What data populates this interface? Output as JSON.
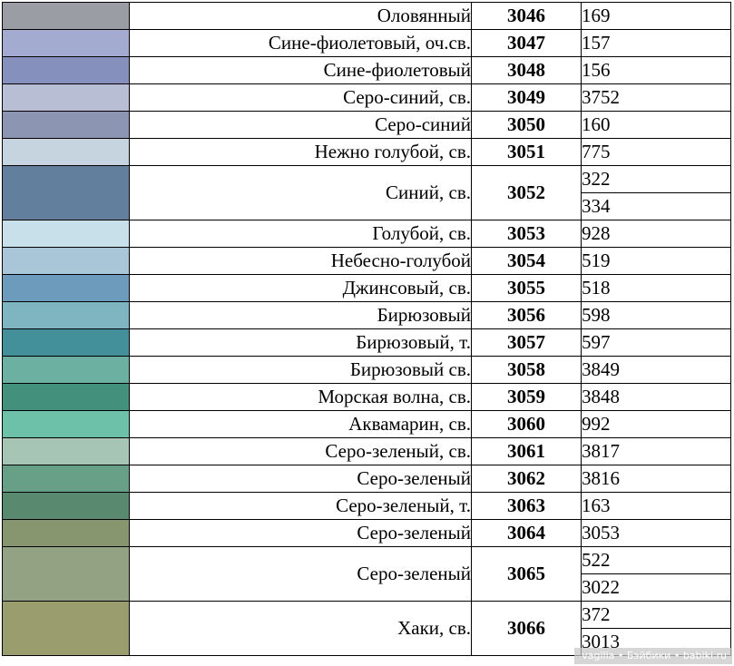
{
  "table": {
    "rows": [
      {
        "color": "#9a9ea4",
        "name": "Оловянный",
        "code": "3046",
        "nums": [
          "169"
        ]
      },
      {
        "color": "#a3acd0",
        "name": "Сине-фиолетовый, оч.св.",
        "code": "3047",
        "nums": [
          "157"
        ]
      },
      {
        "color": "#8590bd",
        "name": "Сине-фиолетовый",
        "code": "3048",
        "nums": [
          "156"
        ]
      },
      {
        "color": "#b8bed4",
        "name": "Серо-синий, св.",
        "code": "3049",
        "nums": [
          "3752"
        ]
      },
      {
        "color": "#8c96b2",
        "name": "Серо-синий",
        "code": "3050",
        "nums": [
          "160"
        ]
      },
      {
        "color": "#c6d4e0",
        "name": "Нежно голубой, св.",
        "code": "3051",
        "nums": [
          "775"
        ]
      },
      {
        "color": "#637f9e",
        "name": "Синий, св.",
        "code": "3052",
        "nums": [
          "322",
          "334"
        ]
      },
      {
        "color": "#c8e0ea",
        "name": "Голубой, св.",
        "code": "3053",
        "nums": [
          "928"
        ]
      },
      {
        "color": "#a9c6d8",
        "name": "Небесно-голубой",
        "code": "3054",
        "nums": [
          "519"
        ]
      },
      {
        "color": "#6c9bbb",
        "name": "Джинсовый, св.",
        "code": "3055",
        "nums": [
          "518"
        ]
      },
      {
        "color": "#7eb5c0",
        "name": "Бирюзовый",
        "code": "3056",
        "nums": [
          "598"
        ]
      },
      {
        "color": "#43909a",
        "name": "Бирюзовый, т.",
        "code": "3057",
        "nums": [
          "597"
        ]
      },
      {
        "color": "#6cb0a2",
        "name": "Бирюзовый св.",
        "code": "3058",
        "nums": [
          "3849"
        ]
      },
      {
        "color": "#43917c",
        "name": "Морская волна, св.",
        "code": "3059",
        "nums": [
          "3848"
        ]
      },
      {
        "color": "#6dc1a8",
        "name": "Аквамарин, св.",
        "code": "3060",
        "nums": [
          "992"
        ]
      },
      {
        "color": "#a7c5b5",
        "name": "Серо-зеленый, св.",
        "code": "3061",
        "nums": [
          "3817"
        ]
      },
      {
        "color": "#679f87",
        "name": "Серо-зеленый",
        "code": "3062",
        "nums": [
          "3816"
        ]
      },
      {
        "color": "#598a70",
        "name": "Серо-зеленый, т.",
        "code": "3063",
        "nums": [
          "163"
        ]
      },
      {
        "color": "#87966f",
        "name": "Серо-зеленый",
        "code": "3064",
        "nums": [
          "3053"
        ]
      },
      {
        "color": "#92a282",
        "name": "Серо-зеленый",
        "code": "3065",
        "nums": [
          "522",
          "3022"
        ]
      },
      {
        "color": "#9a9d6e",
        "name": "Хаки, св.",
        "code": "3066",
        "nums": [
          "372",
          "3013"
        ]
      }
    ]
  },
  "watermark": "vagilia • Бэйбики • babiki.ru"
}
